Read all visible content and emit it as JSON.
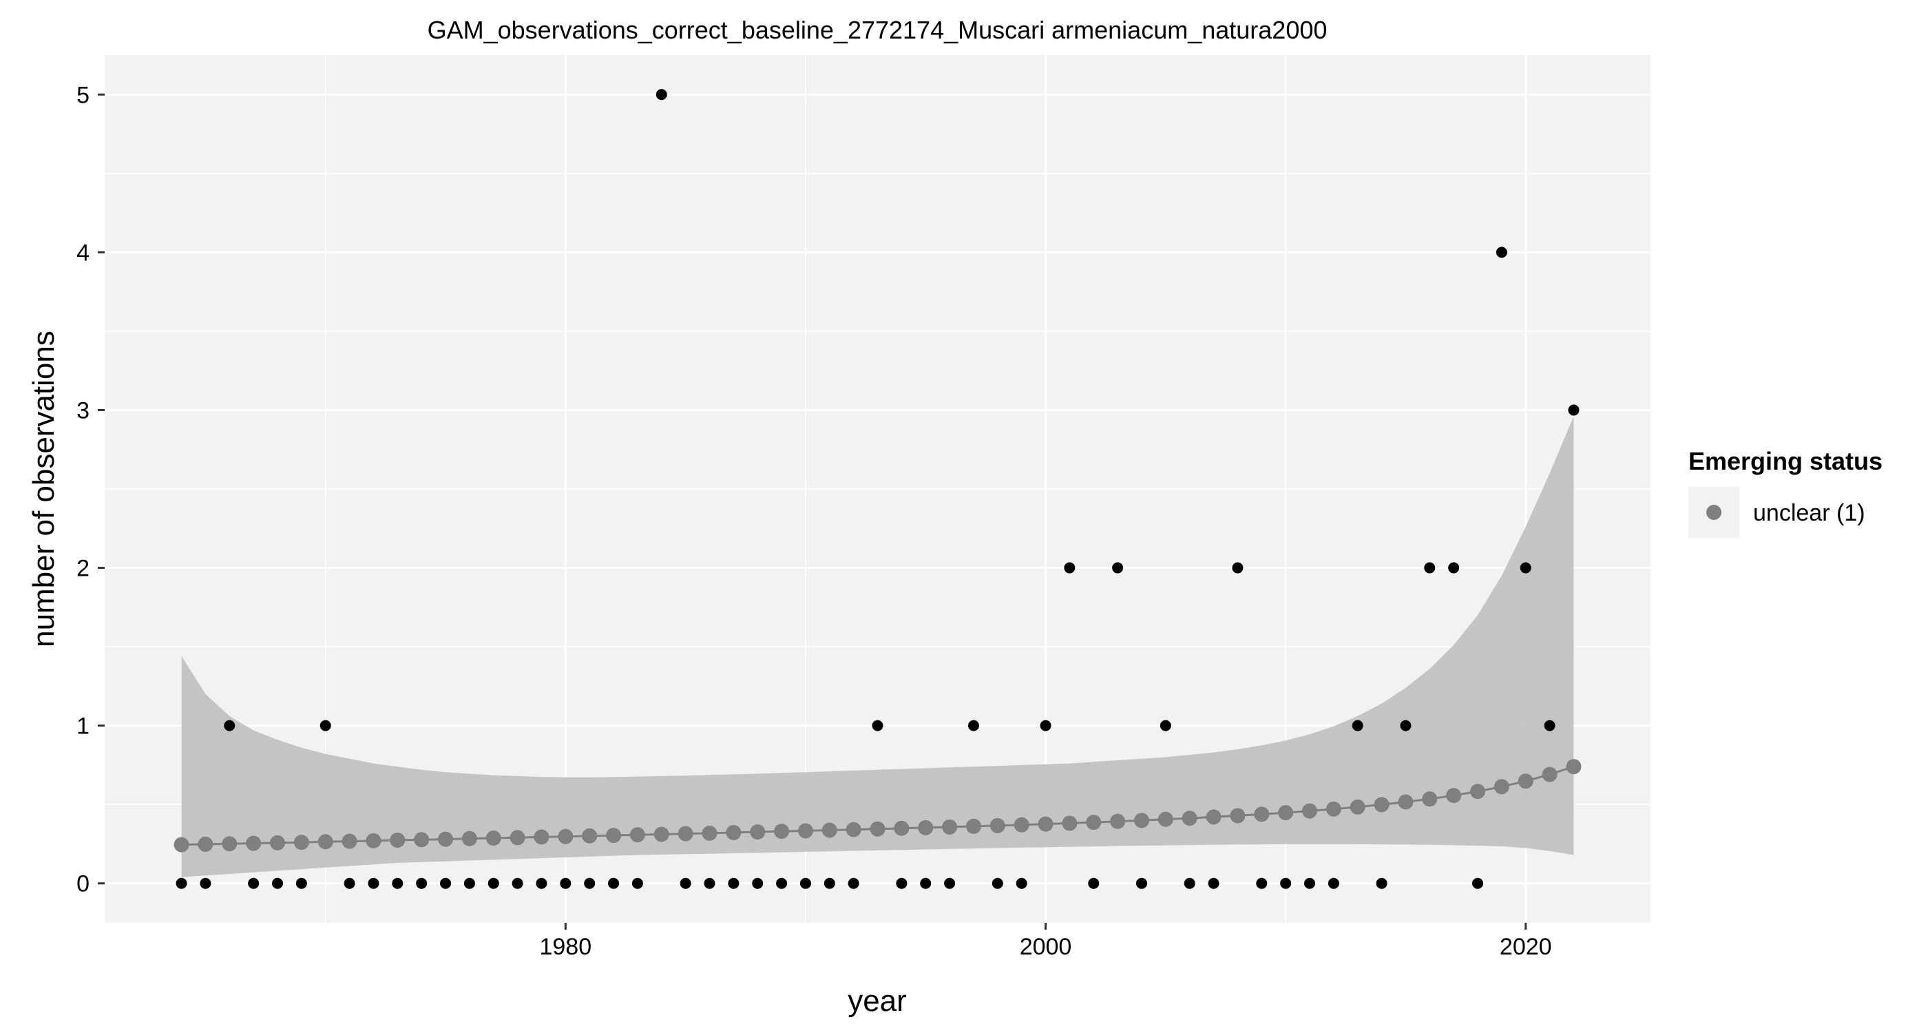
{
  "chart_data": {
    "type": "scatter",
    "title": "GAM_observations_correct_baseline_2772174_Muscari armeniacum_natura2000",
    "xlabel": "year",
    "ylabel": "number of observations",
    "xlim": [
      1960.8,
      2025.2
    ],
    "ylim": [
      -0.25,
      5.25
    ],
    "x_ticks": [
      1980,
      2000,
      2020
    ],
    "x_minor_ticks": [
      1970,
      1990,
      2010
    ],
    "y_ticks": [
      0,
      1,
      2,
      3,
      4,
      5
    ],
    "grid": true,
    "legend": {
      "title": "Emerging status",
      "position": "right",
      "entries": [
        {
          "label": "unclear (1)",
          "color": "#7f7f7f"
        }
      ]
    },
    "observations": {
      "x": [
        1964,
        1965,
        1966,
        1967,
        1968,
        1969,
        1970,
        1971,
        1972,
        1973,
        1974,
        1975,
        1976,
        1977,
        1978,
        1979,
        1980,
        1981,
        1982,
        1983,
        1984,
        1985,
        1986,
        1987,
        1988,
        1989,
        1990,
        1991,
        1992,
        1993,
        1994,
        1995,
        1996,
        1997,
        1998,
        1999,
        2000,
        2001,
        2002,
        2003,
        2004,
        2005,
        2006,
        2007,
        2008,
        2009,
        2010,
        2011,
        2012,
        2013,
        2014,
        2015,
        2016,
        2017,
        2018,
        2019,
        2020,
        2021,
        2022
      ],
      "y": [
        0,
        0,
        1,
        0,
        0,
        0,
        1,
        0,
        0,
        0,
        0,
        0,
        0,
        0,
        0,
        0,
        0,
        0,
        0,
        0,
        5,
        0,
        0,
        0,
        0,
        0,
        0,
        0,
        0,
        1,
        0,
        0,
        0,
        1,
        0,
        0,
        1,
        2,
        0,
        2,
        0,
        1,
        0,
        0,
        2,
        0,
        0,
        0,
        0,
        1,
        0,
        1,
        2,
        2,
        0,
        4,
        2,
        1,
        3
      ],
      "color": "#000000"
    },
    "fit": {
      "name": "unclear (1)",
      "x": [
        1964,
        1965,
        1966,
        1967,
        1968,
        1969,
        1970,
        1971,
        1972,
        1973,
        1974,
        1975,
        1976,
        1977,
        1978,
        1979,
        1980,
        1981,
        1982,
        1983,
        1984,
        1985,
        1986,
        1987,
        1988,
        1989,
        1990,
        1991,
        1992,
        1993,
        1994,
        1995,
        1996,
        1997,
        1998,
        1999,
        2000,
        2001,
        2002,
        2003,
        2004,
        2005,
        2006,
        2007,
        2008,
        2009,
        2010,
        2011,
        2012,
        2013,
        2014,
        2015,
        2016,
        2017,
        2018,
        2019,
        2020,
        2021,
        2022
      ],
      "y": [
        0.245,
        0.248,
        0.251,
        0.254,
        0.257,
        0.26,
        0.264,
        0.267,
        0.27,
        0.274,
        0.277,
        0.28,
        0.284,
        0.287,
        0.29,
        0.294,
        0.297,
        0.301,
        0.304,
        0.308,
        0.311,
        0.315,
        0.318,
        0.322,
        0.326,
        0.33,
        0.333,
        0.337,
        0.341,
        0.345,
        0.349,
        0.353,
        0.357,
        0.362,
        0.366,
        0.371,
        0.376,
        0.381,
        0.387,
        0.393,
        0.399,
        0.406,
        0.413,
        0.421,
        0.429,
        0.438,
        0.448,
        0.459,
        0.471,
        0.484,
        0.499,
        0.516,
        0.535,
        0.557,
        0.583,
        0.613,
        0.648,
        0.69,
        0.74
      ],
      "lower": [
        0.04,
        0.05,
        0.06,
        0.07,
        0.08,
        0.09,
        0.1,
        0.11,
        0.12,
        0.13,
        0.135,
        0.14,
        0.145,
        0.15,
        0.155,
        0.16,
        0.165,
        0.17,
        0.175,
        0.18,
        0.182,
        0.185,
        0.188,
        0.191,
        0.194,
        0.197,
        0.2,
        0.203,
        0.206,
        0.209,
        0.212,
        0.215,
        0.218,
        0.221,
        0.224,
        0.227,
        0.229,
        0.232,
        0.234,
        0.237,
        0.239,
        0.241,
        0.243,
        0.245,
        0.246,
        0.247,
        0.248,
        0.248,
        0.248,
        0.248,
        0.247,
        0.246,
        0.244,
        0.242,
        0.239,
        0.235,
        0.224,
        0.205,
        0.18
      ],
      "upper": [
        1.44,
        1.2,
        1.06,
        0.97,
        0.91,
        0.86,
        0.82,
        0.79,
        0.76,
        0.74,
        0.72,
        0.705,
        0.695,
        0.685,
        0.68,
        0.675,
        0.672,
        0.672,
        0.674,
        0.677,
        0.68,
        0.683,
        0.687,
        0.691,
        0.695,
        0.7,
        0.705,
        0.71,
        0.715,
        0.72,
        0.725,
        0.73,
        0.735,
        0.74,
        0.745,
        0.75,
        0.755,
        0.76,
        0.77,
        0.78,
        0.79,
        0.8,
        0.815,
        0.83,
        0.85,
        0.875,
        0.905,
        0.945,
        0.995,
        1.06,
        1.14,
        1.24,
        1.36,
        1.51,
        1.7,
        1.95,
        2.26,
        2.6,
        2.96
      ],
      "point_color": "#7f7f7f",
      "ribbon_color": "#bfbfbf"
    }
  }
}
